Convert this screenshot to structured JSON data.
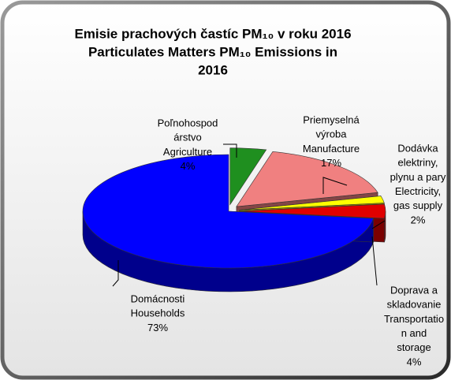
{
  "chart_data": {
    "type": "pie3d",
    "title": [
      "Emisie prachových častíc PM₁₀ v roku 2016",
      "Particulates Matters PM₁₀ Emissions in",
      "2016"
    ],
    "categories": [
      [
        "Poľnohospod",
        "árstvo",
        "Agriculture"
      ],
      [
        "Priemyselná",
        "výroba",
        "Manufacture"
      ],
      [
        "Dodávka",
        "elektriny,",
        "plynu a pary",
        "Electricity,",
        "gas supply"
      ],
      [
        "Doprava a",
        "skladovanie",
        "Transportatio",
        "n and",
        "storage"
      ],
      [
        "Domácnosti",
        "Households"
      ]
    ],
    "values": [
      4,
      17,
      2,
      4,
      73
    ],
    "value_labels": [
      "4%",
      "17%",
      "2%",
      "4%",
      "73%"
    ],
    "colors": [
      "#1f8f1f",
      "#f08080",
      "#ffff00",
      "#e00000",
      "#0000ff"
    ]
  }
}
